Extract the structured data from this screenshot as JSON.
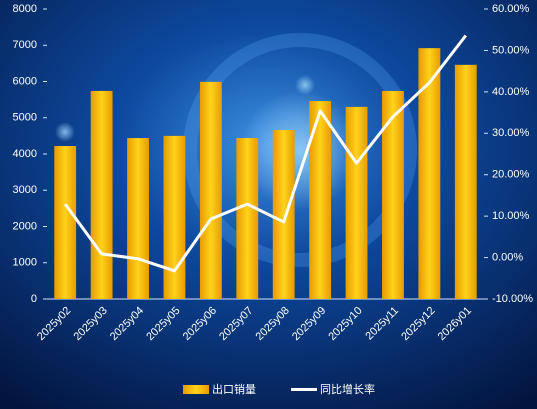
{
  "chart_data": {
    "type": "bar",
    "categories": [
      "2025y02",
      "2025y03",
      "2025y04",
      "2025y05",
      "2025y06",
      "2025y07",
      "2025y08",
      "2025y09",
      "2025y10",
      "2025y11",
      "2025y12",
      "2026y01"
    ],
    "series": [
      {
        "name": "出口销量",
        "type": "bar",
        "color": "#ffc000",
        "values": [
          4220,
          5740,
          4440,
          4500,
          5990,
          4440,
          4660,
          5460,
          5300,
          5740,
          6920,
          6460
        ]
      },
      {
        "name": "同比增长率",
        "type": "line",
        "axis": "y2",
        "color": "#ffffff",
        "values": [
          12.9,
          0.9,
          -0.3,
          -3.2,
          9.3,
          12.9,
          8.6,
          35.4,
          22.8,
          34.0,
          42.2,
          53.6
        ]
      }
    ],
    "ylim": [
      0,
      8000
    ],
    "yticks": [
      0,
      1000,
      2000,
      3000,
      4000,
      5000,
      6000,
      7000,
      8000
    ],
    "y2lim": [
      -10,
      60
    ],
    "y2ticks": [
      {
        "value": -10,
        "label": "-10.00%"
      },
      {
        "value": 0,
        "label": "0.00%"
      },
      {
        "value": 10,
        "label": "10.00%"
      },
      {
        "value": 20,
        "label": "20.00%"
      },
      {
        "value": 30,
        "label": "30.00%"
      },
      {
        "value": 40,
        "label": "40.00%"
      },
      {
        "value": 50,
        "label": "50.00%"
      },
      {
        "value": 60,
        "label": "60.00%"
      }
    ],
    "legend": "bottom"
  }
}
